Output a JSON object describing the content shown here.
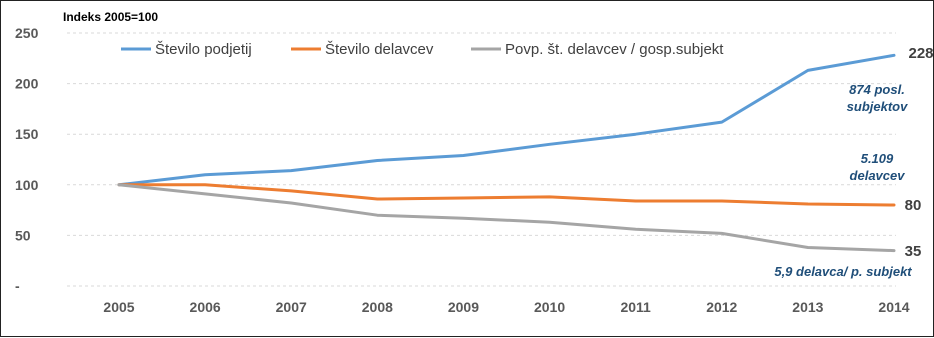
{
  "chart_data": {
    "type": "line",
    "index_note": "Indeks 2005=100",
    "x": [
      "2005",
      "2006",
      "2007",
      "2008",
      "2009",
      "2010",
      "2011",
      "2012",
      "2013",
      "2014"
    ],
    "ylim": [
      0,
      250
    ],
    "yticks": [
      "-",
      "50",
      "100",
      "150",
      "200",
      "250"
    ],
    "ytick_values": [
      0,
      50,
      100,
      150,
      200,
      250
    ],
    "grid": "horizontal dashed",
    "legend_position": "top",
    "series": [
      {
        "name": "Število podjetij",
        "color": "#5b9bd5",
        "values": [
          100,
          110,
          114,
          124,
          129,
          140,
          150,
          162,
          213,
          228
        ],
        "end_label": "228",
        "note": [
          "874 posl.",
          "subjektov"
        ]
      },
      {
        "name": "Število delavcev",
        "color": "#ed7d31",
        "values": [
          100,
          100,
          94,
          86,
          87,
          88,
          84,
          84,
          81,
          80
        ],
        "end_label": "80",
        "note": [
          "5.109",
          "delavcev"
        ]
      },
      {
        "name": "Povp. št. delavcev / gosp.subjekt",
        "color": "#a5a5a5",
        "values": [
          100,
          91,
          82,
          70,
          67,
          63,
          56,
          52,
          38,
          35
        ],
        "end_label": "35",
        "note": [
          "5,9 delavca/ p. subjekt"
        ]
      }
    ]
  }
}
